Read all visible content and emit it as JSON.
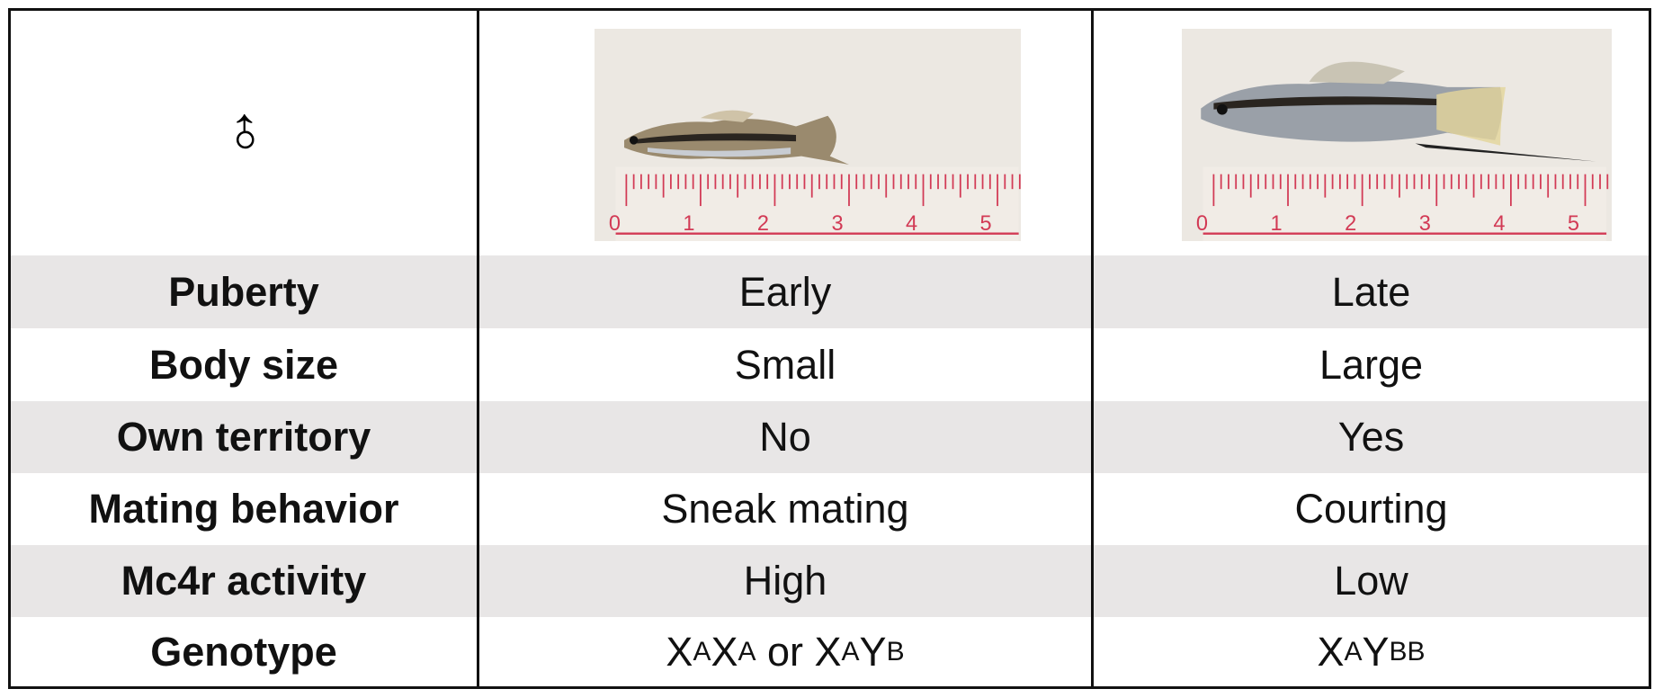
{
  "header": {
    "symbol": "♂"
  },
  "images": [
    {
      "ruler": [
        0,
        1,
        2,
        3,
        4,
        5
      ]
    },
    {
      "ruler": [
        0,
        1,
        2,
        3,
        4,
        5
      ]
    }
  ],
  "table": {
    "rows": [
      [
        "Puberty",
        "Early",
        "Late"
      ],
      [
        "Body size",
        "Small",
        "Large"
      ],
      [
        "Own territory",
        "No",
        "Yes"
      ],
      [
        "Mating behavior",
        "Sneak mating",
        "Courting"
      ],
      [
        "Mc4r activity",
        "High",
        "Low"
      ],
      [
        "Genotype",
        [
          {
            "text": "X"
          },
          {
            "sup": "A"
          },
          {
            "text": "X"
          },
          {
            "sup": "A"
          },
          {
            "text": " or X"
          },
          {
            "sup": "A"
          },
          {
            "text": "Y"
          },
          {
            "sup": "B"
          }
        ],
        [
          {
            "text": "X"
          },
          {
            "sup": "A"
          },
          {
            "text": "Y"
          },
          {
            "sup": "BB"
          }
        ]
      ]
    ]
  }
}
